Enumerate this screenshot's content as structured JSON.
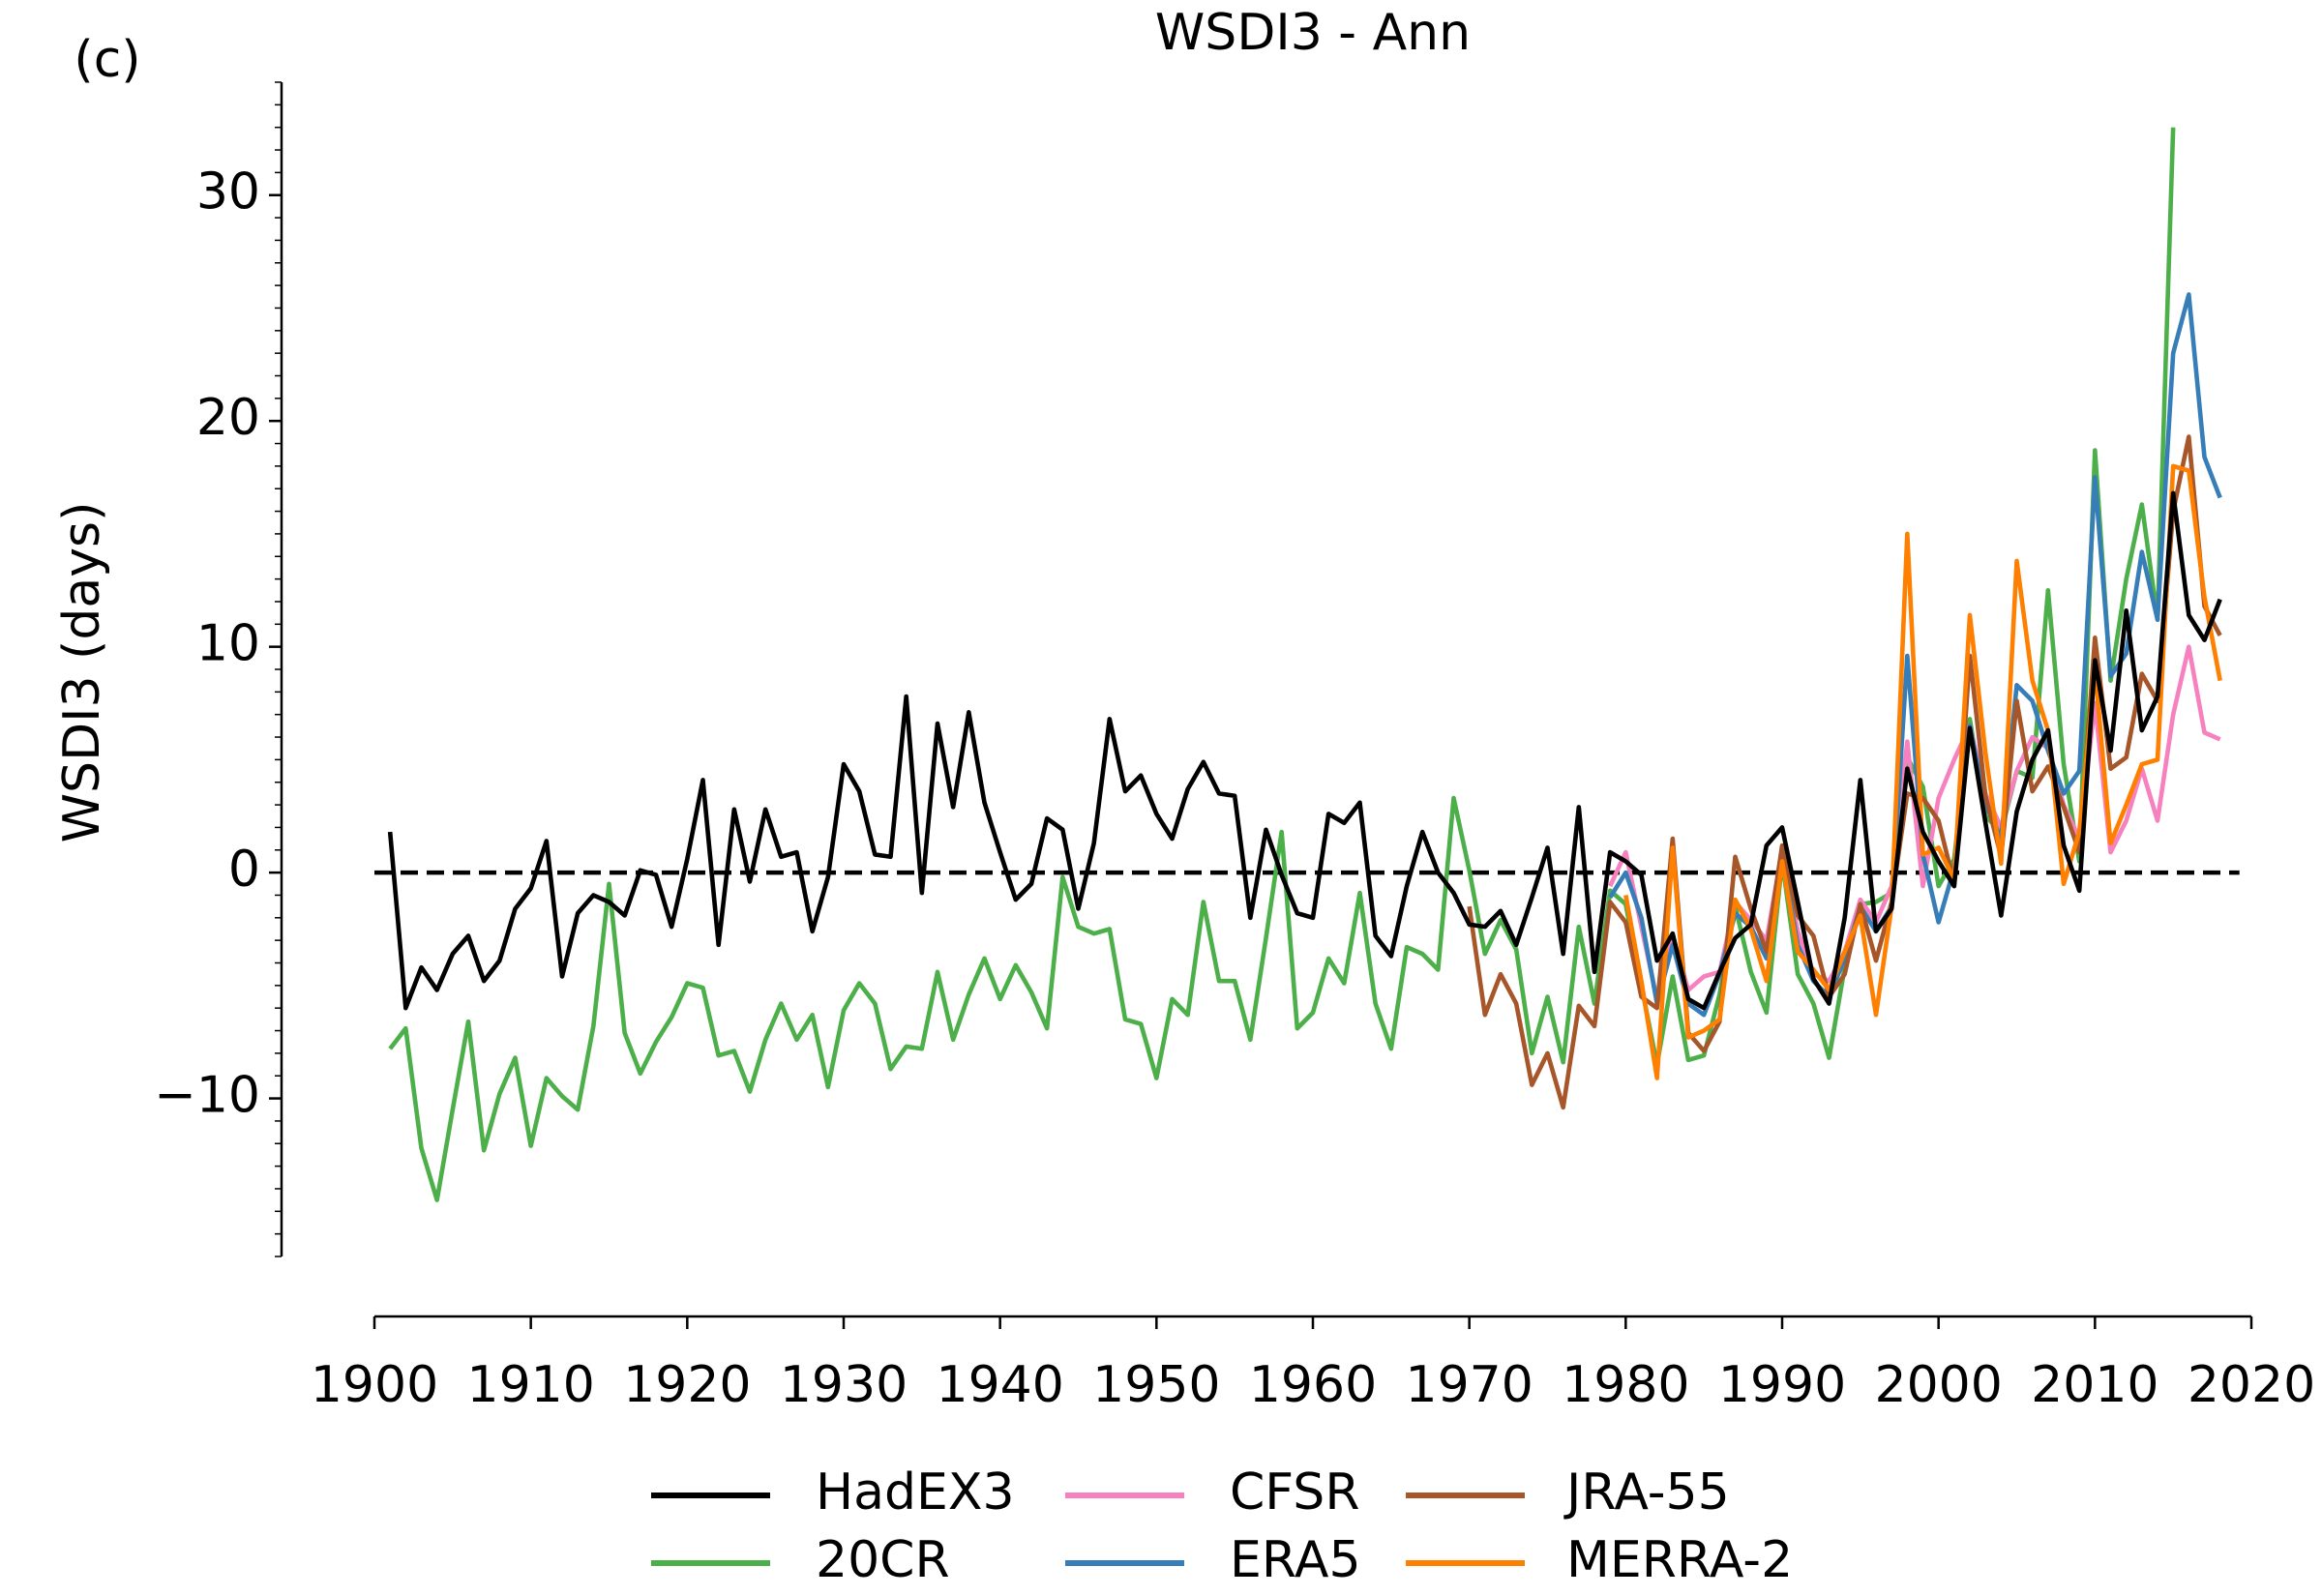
{
  "chart_data": {
    "type": "line",
    "panel_label": "(c)",
    "title": "WSDI3 - Ann",
    "y_label": "WSDI3 (days)",
    "x": [
      1901,
      1902,
      1903,
      1904,
      1905,
      1906,
      1907,
      1908,
      1909,
      1910,
      1911,
      1912,
      1913,
      1914,
      1915,
      1916,
      1917,
      1918,
      1919,
      1920,
      1921,
      1922,
      1923,
      1924,
      1925,
      1926,
      1927,
      1928,
      1929,
      1930,
      1931,
      1932,
      1933,
      1934,
      1935,
      1936,
      1937,
      1938,
      1939,
      1940,
      1941,
      1942,
      1943,
      1944,
      1945,
      1946,
      1947,
      1948,
      1949,
      1950,
      1951,
      1952,
      1953,
      1954,
      1955,
      1956,
      1957,
      1958,
      1959,
      1960,
      1961,
      1962,
      1963,
      1964,
      1965,
      1966,
      1967,
      1968,
      1969,
      1970,
      1971,
      1972,
      1973,
      1974,
      1975,
      1976,
      1977,
      1978,
      1979,
      1980,
      1981,
      1982,
      1983,
      1984,
      1985,
      1986,
      1987,
      1988,
      1989,
      1990,
      1991,
      1992,
      1993,
      1994,
      1995,
      1996,
      1997,
      1998,
      1999,
      2000,
      2001,
      2002,
      2003,
      2004,
      2005,
      2006,
      2007,
      2008,
      2009,
      2010,
      2011,
      2012,
      2013,
      2014,
      2015,
      2016,
      2017,
      2018
    ],
    "series": [
      {
        "name": "HadEX3",
        "color": "#000000",
        "values": [
          1.8,
          -6,
          -4.2,
          -5.2,
          -3.6,
          -2.8,
          -4.8,
          -3.9,
          -1.6,
          -0.7,
          1.4,
          -4.6,
          -1.8,
          -1,
          -1.3,
          -1.9,
          0.1,
          -0.1,
          -2.4,
          0.6,
          4.1,
          -3.2,
          2.8,
          -0.4,
          2.8,
          0.7,
          0.9,
          -2.6,
          -0.2,
          4.8,
          3.6,
          0.8,
          0.7,
          7.8,
          -0.9,
          6.6,
          2.9,
          7.1,
          3.1,
          0.9,
          -1.2,
          -0.5,
          2.4,
          1.9,
          -1.6,
          1.3,
          6.8,
          3.6,
          4.3,
          2.6,
          1.5,
          3.7,
          4.9,
          3.5,
          3.4,
          -2,
          1.9,
          -0.1,
          -1.8,
          -2,
          2.6,
          2.2,
          3.1,
          -2.8,
          -3.7,
          -0.6,
          1.8,
          0,
          -0.9,
          -2.3,
          -2.4,
          -1.7,
          -3.2,
          -1.1,
          1.1,
          -3.6,
          2.9,
          -4.4,
          0.9,
          0.5,
          -0.1,
          -3.9,
          -2.7,
          -5.6,
          -6,
          -4.4,
          -2.9,
          -2.3,
          1.2,
          2,
          -1.3,
          -4.7,
          -5.8,
          -2,
          4.1,
          -2.6,
          -1.6,
          4.6,
          1.8,
          0.5,
          -0.6,
          6.4,
          2.2,
          -1.9,
          2.7,
          5,
          6.3,
          1.2,
          -0.8,
          9.4,
          5.4,
          11.6,
          6.3,
          7.8,
          16.8,
          11.4,
          10.3,
          12.1
        ]
      },
      {
        "name": "20CR",
        "color": "#4daf4a",
        "values": [
          -7.8,
          -6.9,
          -12.2,
          -14.5,
          -10.5,
          -6.6,
          -12.3,
          -9.8,
          -8.2,
          -12.1,
          -9.1,
          -9.9,
          -10.5,
          -6.8,
          -0.5,
          -7.1,
          -8.9,
          -7.5,
          -6.4,
          -4.9,
          -5.1,
          -8.1,
          -7.9,
          -9.7,
          -7.4,
          -5.8,
          -7.4,
          -6.3,
          -9.5,
          -6.1,
          -4.9,
          -5.8,
          -8.7,
          -7.7,
          -7.8,
          -4.4,
          -7.4,
          -5.4,
          -3.8,
          -5.6,
          -4.1,
          -5.3,
          -6.9,
          -0.2,
          -2.4,
          -2.7,
          -2.5,
          -6.5,
          -6.7,
          -9.1,
          -5.6,
          -6.3,
          -1.3,
          -4.8,
          -4.8,
          -7.4,
          -2.9,
          1.8,
          -6.9,
          -6.2,
          -3.8,
          -4.9,
          -0.9,
          -5.8,
          -7.8,
          -3.3,
          -3.6,
          -4.3,
          3.3,
          0.1,
          -3.6,
          -2.1,
          -3.4,
          -8,
          -5.5,
          -8.4,
          -2.4,
          -5.8,
          -0.8,
          -1.4,
          -5,
          -8.5,
          -4.6,
          -8.3,
          -8.1,
          -5.4,
          -1.5,
          -4.4,
          -6.2,
          0.5,
          -4.5,
          -5.8,
          -8.2,
          -4.2,
          -1.4,
          -1.3,
          -0.9,
          5.1,
          3.8,
          -0.6,
          0.6,
          6.8,
          2.5,
          1.8,
          4.5,
          4.2,
          12.5,
          4.8,
          0.5,
          18.7,
          8.5,
          13,
          16.3,
          11.2,
          33,
          null,
          null,
          null
        ]
      },
      {
        "name": "CFSR",
        "color": "#f781bf",
        "values": [
          null,
          null,
          null,
          null,
          null,
          null,
          null,
          null,
          null,
          null,
          null,
          null,
          null,
          null,
          null,
          null,
          null,
          null,
          null,
          null,
          null,
          null,
          null,
          null,
          null,
          null,
          null,
          null,
          null,
          null,
          null,
          null,
          null,
          null,
          null,
          null,
          null,
          null,
          null,
          null,
          null,
          null,
          null,
          null,
          null,
          null,
          null,
          null,
          null,
          null,
          null,
          null,
          null,
          null,
          null,
          null,
          null,
          null,
          null,
          null,
          null,
          null,
          null,
          null,
          null,
          null,
          null,
          null,
          null,
          null,
          null,
          null,
          null,
          null,
          null,
          null,
          null,
          null,
          -0.6,
          0.9,
          -2.4,
          -5.6,
          -2.8,
          -5.2,
          -4.6,
          -4.4,
          -1.3,
          -2.1,
          -3,
          1,
          -2.6,
          -4.5,
          -4.8,
          -3.5,
          -1.2,
          -2.2,
          -0.6,
          5.8,
          -0.6,
          3.3,
          5,
          6.5,
          3.5,
          2,
          4.5,
          6,
          5.5,
          3,
          1.5,
          7.5,
          0.9,
          2.3,
          4.6,
          2.3,
          7,
          10,
          6.2,
          5.9
        ]
      },
      {
        "name": "ERA5",
        "color": "#377eb8",
        "values": [
          null,
          null,
          null,
          null,
          null,
          null,
          null,
          null,
          null,
          null,
          null,
          null,
          null,
          null,
          null,
          null,
          null,
          null,
          null,
          null,
          null,
          null,
          null,
          null,
          null,
          null,
          null,
          null,
          null,
          null,
          null,
          null,
          null,
          null,
          null,
          null,
          null,
          null,
          null,
          null,
          null,
          null,
          null,
          null,
          null,
          null,
          null,
          null,
          null,
          null,
          null,
          null,
          null,
          null,
          null,
          null,
          null,
          null,
          null,
          null,
          null,
          null,
          null,
          null,
          null,
          null,
          null,
          null,
          null,
          null,
          null,
          null,
          null,
          null,
          null,
          null,
          null,
          null,
          -1.1,
          0,
          -2,
          -5.8,
          -3.2,
          -5.8,
          -6.3,
          -4.5,
          -1.8,
          -2.4,
          -3.8,
          0.8,
          -3.2,
          -4.8,
          -5.5,
          -3.8,
          -1.5,
          -2.6,
          -1.5,
          9.6,
          0.8,
          -2.2,
          0.2,
          6.5,
          3,
          1.5,
          8.3,
          7.6,
          5.4,
          3.5,
          4.5,
          17.5,
          8.7,
          9.7,
          14.2,
          11.2,
          23,
          25.6,
          18.4,
          16.6
        ]
      },
      {
        "name": "JRA-55",
        "color": "#a65628",
        "values": [
          null,
          null,
          null,
          null,
          null,
          null,
          null,
          null,
          null,
          null,
          null,
          null,
          null,
          null,
          null,
          null,
          null,
          null,
          null,
          null,
          null,
          null,
          null,
          null,
          null,
          null,
          null,
          null,
          null,
          null,
          null,
          null,
          null,
          null,
          null,
          null,
          null,
          null,
          null,
          null,
          null,
          null,
          null,
          null,
          null,
          null,
          null,
          null,
          null,
          null,
          null,
          null,
          null,
          null,
          null,
          null,
          null,
          null,
          null,
          null,
          null,
          null,
          null,
          null,
          null,
          null,
          null,
          null,
          null,
          -1.5,
          -6.3,
          -4.5,
          -5.8,
          -9.4,
          -8,
          -10.4,
          -5.9,
          -6.8,
          -1.3,
          -2.2,
          -5.5,
          -6,
          1.5,
          -7.1,
          -7.9,
          -6.6,
          0.7,
          -1.6,
          -3.5,
          1.2,
          -1.9,
          -2.8,
          -5.5,
          -4.5,
          -1.4,
          -3.9,
          -1.3,
          3.5,
          3.3,
          2.3,
          -0.5,
          9.6,
          3.4,
          0.7,
          7.6,
          3.6,
          4.7,
          2.9,
          0.9,
          10.4,
          4.6,
          5.1,
          8.8,
          7.6,
          16,
          19.3,
          11.8,
          10.5
        ]
      },
      {
        "name": "MERRA-2",
        "color": "#ff7f00",
        "values": [
          null,
          null,
          null,
          null,
          null,
          null,
          null,
          null,
          null,
          null,
          null,
          null,
          null,
          null,
          null,
          null,
          null,
          null,
          null,
          null,
          null,
          null,
          null,
          null,
          null,
          null,
          null,
          null,
          null,
          null,
          null,
          null,
          null,
          null,
          null,
          null,
          null,
          null,
          null,
          null,
          null,
          null,
          null,
          null,
          null,
          null,
          null,
          null,
          null,
          null,
          null,
          null,
          null,
          null,
          null,
          null,
          null,
          null,
          null,
          null,
          null,
          null,
          null,
          null,
          null,
          null,
          null,
          null,
          null,
          null,
          null,
          null,
          null,
          null,
          null,
          null,
          null,
          null,
          null,
          -1,
          -4.8,
          -9.1,
          1.1,
          -7.3,
          -7,
          -6.5,
          -1.2,
          -2.5,
          -4.8,
          0.5,
          -3.5,
          -4.3,
          -5.2,
          -3.5,
          -1.9,
          -6.3,
          -1.5,
          15,
          0.8,
          1.1,
          -0.3,
          11.4,
          5.3,
          0.4,
          13.8,
          8.5,
          6.3,
          -0.5,
          1.8,
          9,
          1.3,
          3,
          4.8,
          5,
          18,
          17.8,
          12.2,
          8.5
        ]
      }
    ],
    "reference_line": 0,
    "xlim": [
      1900,
      2020
    ],
    "xticks": [
      1900,
      1910,
      1920,
      1930,
      1940,
      1950,
      1960,
      1970,
      1980,
      1990,
      2000,
      2010,
      2020
    ],
    "ylim": [
      -17,
      35
    ],
    "yticks": [
      {
        "value": -10,
        "label": "−10"
      },
      0,
      10,
      20,
      30
    ],
    "yminor_step": 1,
    "grid": false,
    "legend": "lower center"
  }
}
